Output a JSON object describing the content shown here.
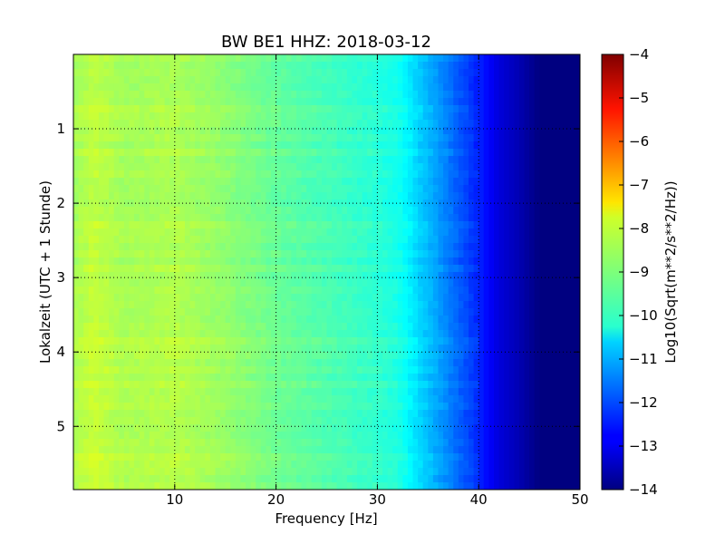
{
  "chart_data": {
    "type": "heatmap",
    "title": "BW BE1 HHZ: 2018-03-12",
    "xlabel": "Frequency [Hz]",
    "ylabel": "Lokalzeit (UTC + 1 Stunde)",
    "xlim": [
      0,
      50
    ],
    "ylim": [
      0,
      5.85
    ],
    "y_inverted": true,
    "x_ticks": [
      10,
      20,
      30,
      40,
      50
    ],
    "y_ticks": [
      1,
      2,
      3,
      4,
      5
    ],
    "grid": true,
    "colormap": "jet",
    "colorbar": {
      "label": "Log10(Sqrt(m**2/s**2/Hz))",
      "range": [
        -14,
        -4
      ],
      "ticks": [
        -4,
        -5,
        -6,
        -7,
        -8,
        -9,
        -10,
        -11,
        -12,
        -13,
        -14
      ]
    },
    "spectral_profile": {
      "description_levels": "approximate log10 amplitude by frequency (Hz)",
      "frequency": [
        0,
        2,
        5,
        10,
        15,
        20,
        25,
        30,
        32,
        34,
        36,
        38,
        40,
        42,
        44,
        46,
        50
      ],
      "level": [
        -8.6,
        -8.3,
        -8.6,
        -8.5,
        -8.8,
        -9.2,
        -9.5,
        -9.8,
        -10.0,
        -10.6,
        -11.2,
        -11.8,
        -12.4,
        -13.1,
        -13.5,
        -14.0,
        -14.0
      ]
    }
  }
}
